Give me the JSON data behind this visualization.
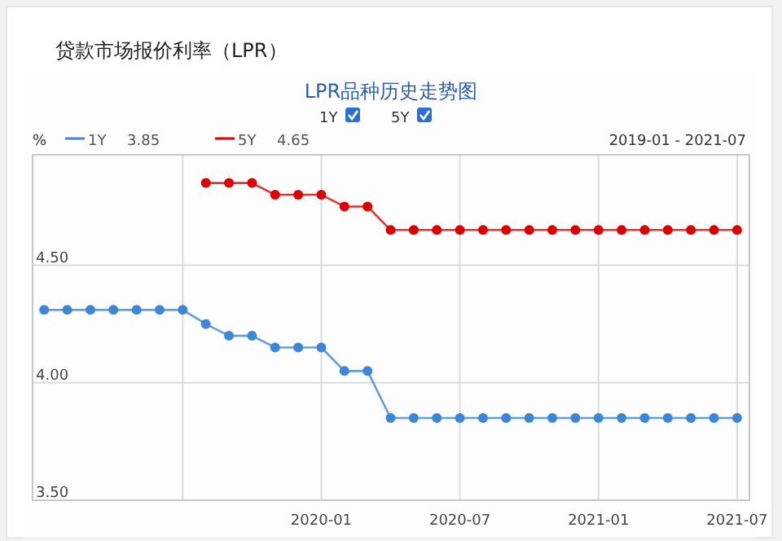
{
  "chart_data": {
    "type": "line",
    "title": "贷款市场报价利率（LPR）",
    "subtitle": "LPR品种历史走势图",
    "ylabel": "%",
    "x": [
      "2019-01",
      "2019-02",
      "2019-03",
      "2019-04",
      "2019-05",
      "2019-06",
      "2019-07",
      "2019-08",
      "2019-09",
      "2019-10",
      "2019-11",
      "2019-12",
      "2020-01",
      "2020-02",
      "2020-03",
      "2020-04",
      "2020-05",
      "2020-06",
      "2020-07",
      "2020-08",
      "2020-09",
      "2020-10",
      "2020-11",
      "2020-12",
      "2021-01",
      "2021-02",
      "2021-03",
      "2021-04",
      "2021-05",
      "2021-06",
      "2021-07"
    ],
    "series": [
      {
        "name": "1Y",
        "color": "#3b86d6",
        "values": [
          4.31,
          4.31,
          4.31,
          4.31,
          4.31,
          4.31,
          4.31,
          4.25,
          4.2,
          4.2,
          4.15,
          4.15,
          4.15,
          4.05,
          4.05,
          3.85,
          3.85,
          3.85,
          3.85,
          3.85,
          3.85,
          3.85,
          3.85,
          3.85,
          3.85,
          3.85,
          3.85,
          3.85,
          3.85,
          3.85,
          3.85
        ]
      },
      {
        "name": "5Y",
        "color": "#dd0000",
        "values": [
          null,
          null,
          null,
          null,
          null,
          null,
          null,
          4.85,
          4.85,
          4.85,
          4.8,
          4.8,
          4.8,
          4.75,
          4.75,
          4.65,
          4.65,
          4.65,
          4.65,
          4.65,
          4.65,
          4.65,
          4.65,
          4.65,
          4.65,
          4.65,
          4.65,
          4.65,
          4.65,
          4.65,
          4.65
        ]
      }
    ],
    "annotations": [
      "3.85",
      "4.65",
      "2019-01 - 2021-07"
    ],
    "xlim": [
      "2018-12-16",
      "2021-07-17"
    ],
    "xticks": [
      {
        "value": "2019-07",
        "label": null
      },
      {
        "value": "2020-01",
        "label": "2020-01"
      },
      {
        "value": "2020-07",
        "label": "2020-07"
      },
      {
        "value": "2021-01",
        "label": "2021-01"
      },
      {
        "value": "2021-07",
        "label": "2021-07"
      }
    ],
    "ylim": [
      3.5,
      4.97
    ],
    "yticks": [
      {
        "value": 3.5,
        "label": "3.50"
      },
      {
        "value": 4.0,
        "label": "4.00"
      },
      {
        "value": 4.5,
        "label": "4.50"
      }
    ],
    "grid": true,
    "legend": "top left",
    "marker": "circle",
    "line_style": "solid"
  }
}
